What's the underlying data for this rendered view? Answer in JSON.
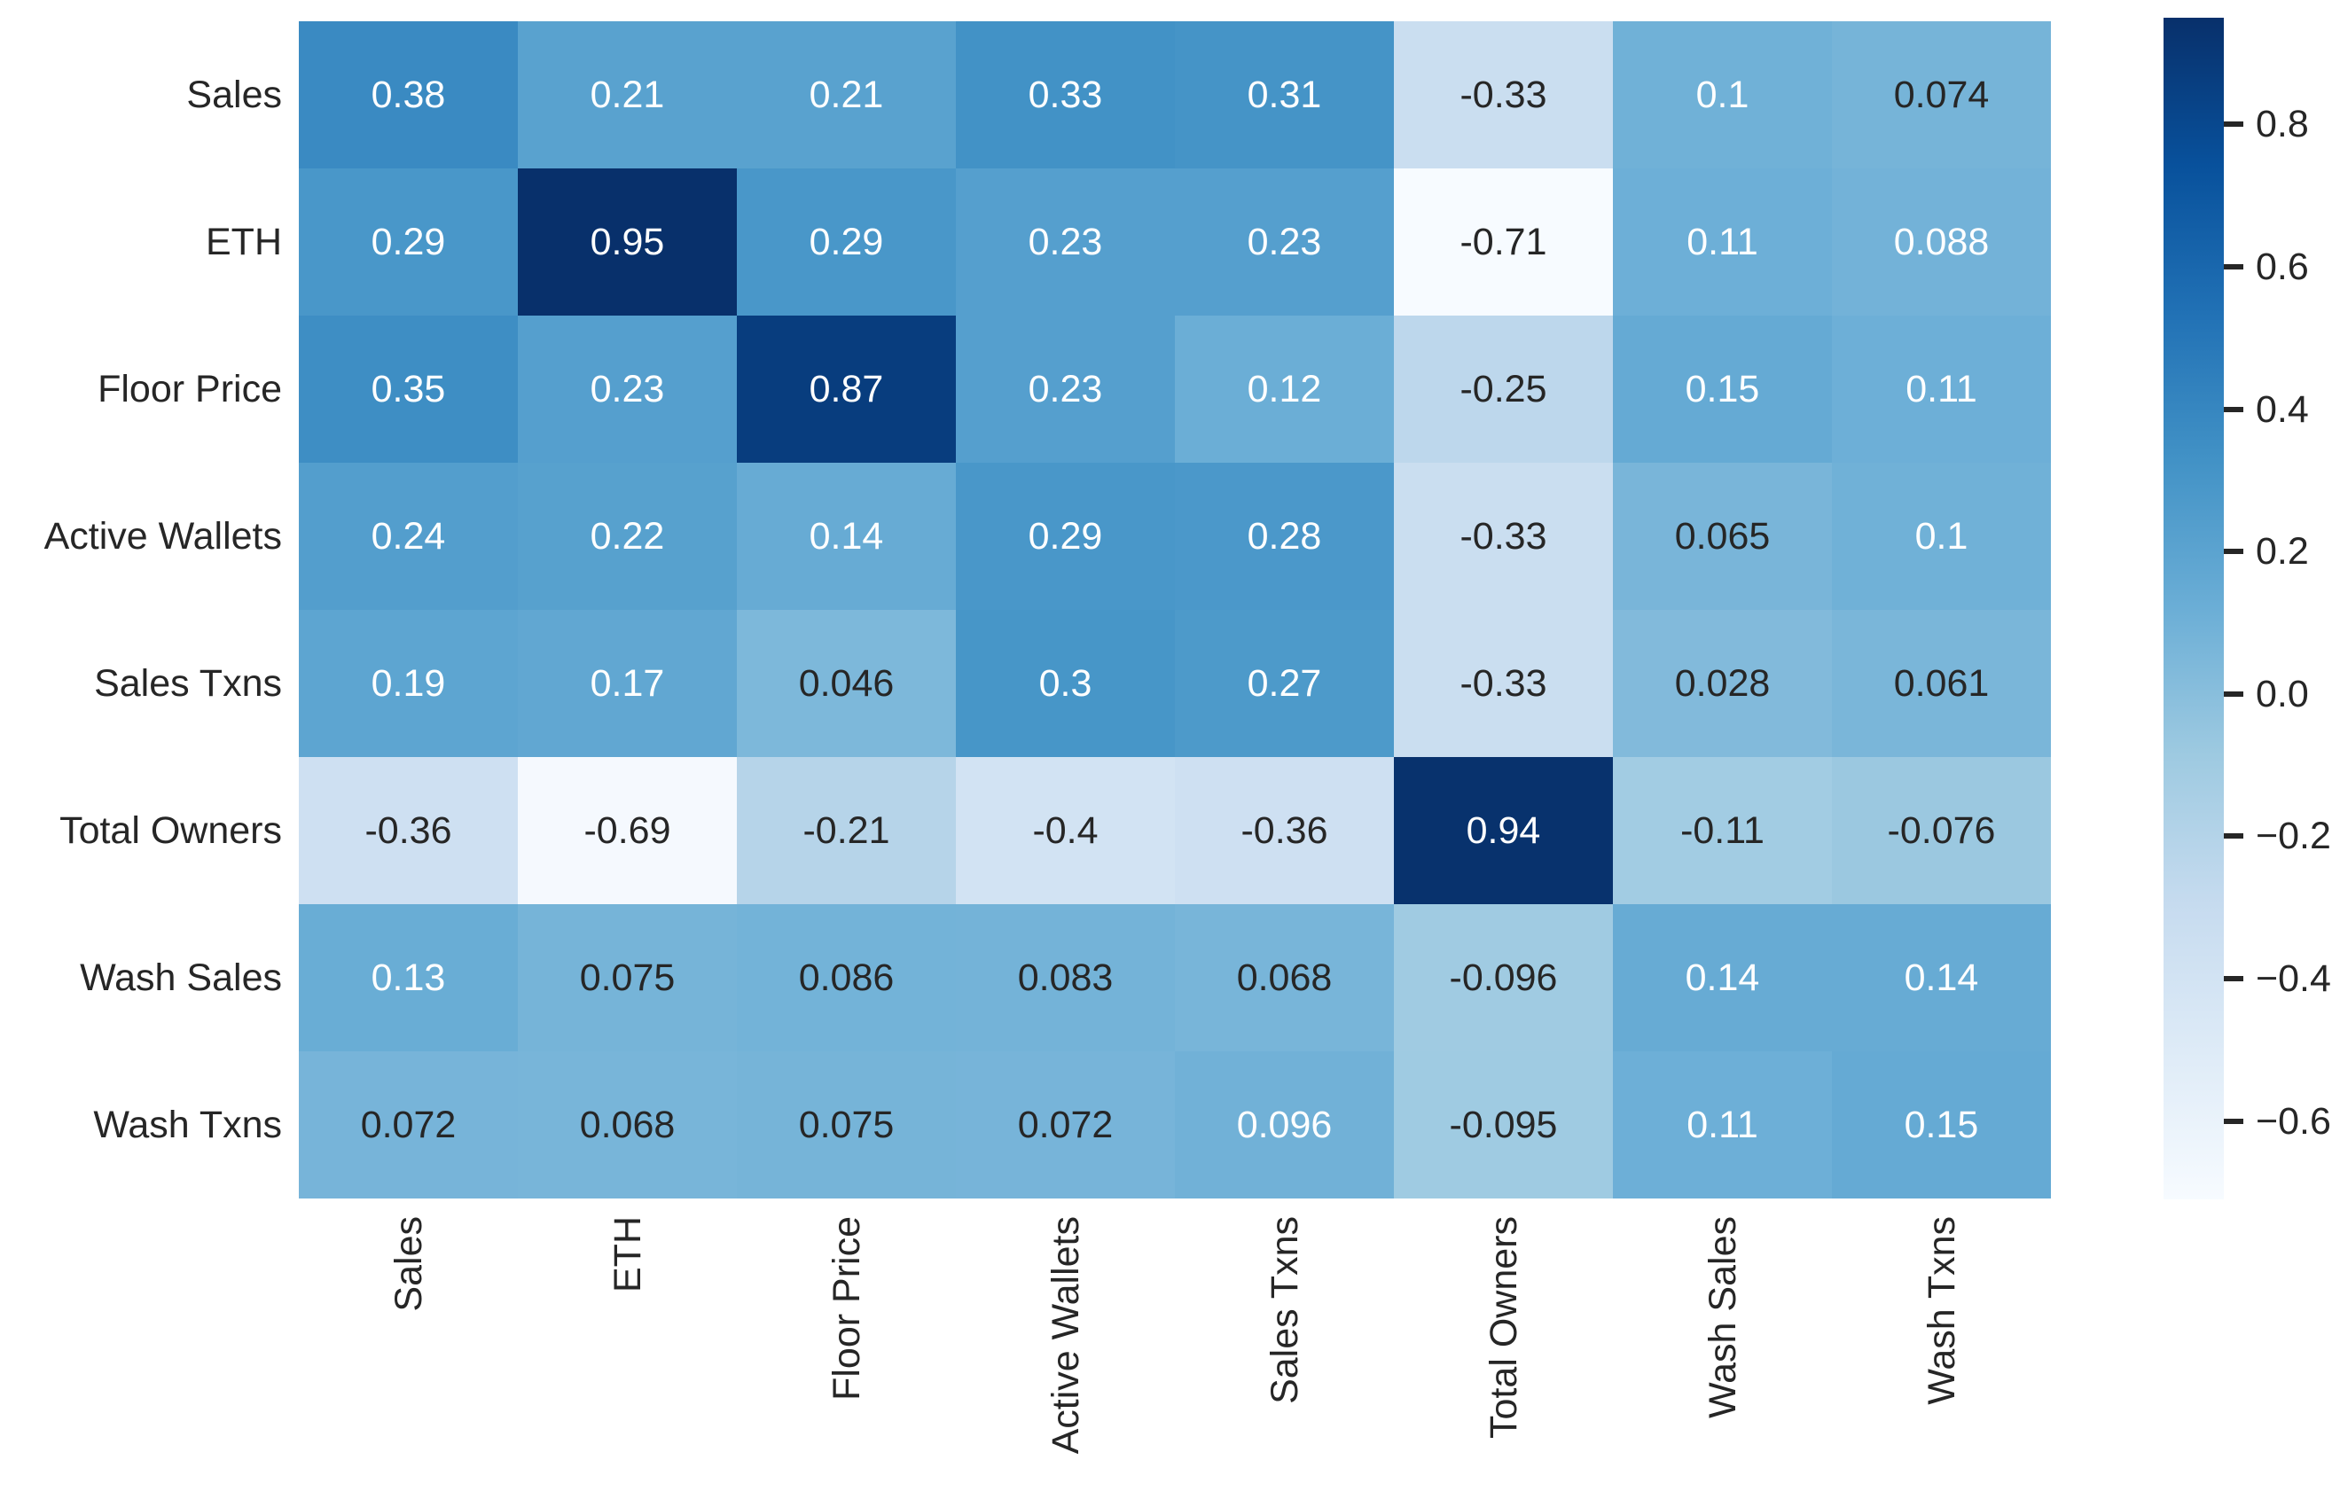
{
  "chart_data": {
    "type": "heatmap",
    "title": "",
    "row_labels": [
      "Sales",
      "ETH",
      "Floor Price",
      "Active Wallets",
      "Sales Txns",
      "Total Owners",
      "Wash Sales",
      "Wash Txns"
    ],
    "col_labels": [
      "Sales",
      "ETH",
      "Floor Price",
      "Active Wallets",
      "Sales Txns",
      "Total Owners",
      "Wash Sales",
      "Wash Txns"
    ],
    "cells": [
      [
        "0.38",
        "0.21",
        "0.21",
        "0.33",
        "0.31",
        "-0.33",
        "0.1",
        "0.074"
      ],
      [
        "0.29",
        "0.95",
        "0.29",
        "0.23",
        "0.23",
        "-0.71",
        "0.11",
        "0.088"
      ],
      [
        "0.35",
        "0.23",
        "0.87",
        "0.23",
        "0.12",
        "-0.25",
        "0.15",
        "0.11"
      ],
      [
        "0.24",
        "0.22",
        "0.14",
        "0.29",
        "0.28",
        "-0.33",
        "0.065",
        "0.1"
      ],
      [
        "0.19",
        "0.17",
        "0.046",
        "0.3",
        "0.27",
        "-0.33",
        "0.028",
        "0.061"
      ],
      [
        "-0.36",
        "-0.69",
        "-0.21",
        "-0.4",
        "-0.36",
        "0.94",
        "-0.11",
        "-0.076"
      ],
      [
        "0.13",
        "0.075",
        "0.086",
        "0.083",
        "0.068",
        "-0.096",
        "0.14",
        "0.14"
      ],
      [
        "0.072",
        "0.068",
        "0.075",
        "0.072",
        "0.096",
        "-0.095",
        "0.11",
        "0.15"
      ]
    ],
    "vmin": -0.71,
    "vmax": 0.95,
    "colormap": {
      "name": "Blues",
      "stops": [
        "#f7fbff",
        "#deebf7",
        "#c6dbef",
        "#9ecae1",
        "#6baed6",
        "#4292c6",
        "#2171b5",
        "#08519c",
        "#08306b"
      ]
    },
    "colorbar_ticks": [
      {
        "label": "0.8",
        "value": 0.8
      },
      {
        "label": "0.6",
        "value": 0.6
      },
      {
        "label": "0.4",
        "value": 0.4
      },
      {
        "label": "0.2",
        "value": 0.2
      },
      {
        "label": "0.0",
        "value": 0.0
      },
      {
        "label": "−0.2",
        "value": -0.2
      },
      {
        "label": "−0.4",
        "value": -0.4
      },
      {
        "label": "−0.6",
        "value": -0.6
      }
    ],
    "annotation_text_dark": "#262626",
    "annotation_text_light": "#ffffff",
    "luminance_threshold": 0.408,
    "background": "#ffffff",
    "legend_position": "right",
    "grid": false
  }
}
